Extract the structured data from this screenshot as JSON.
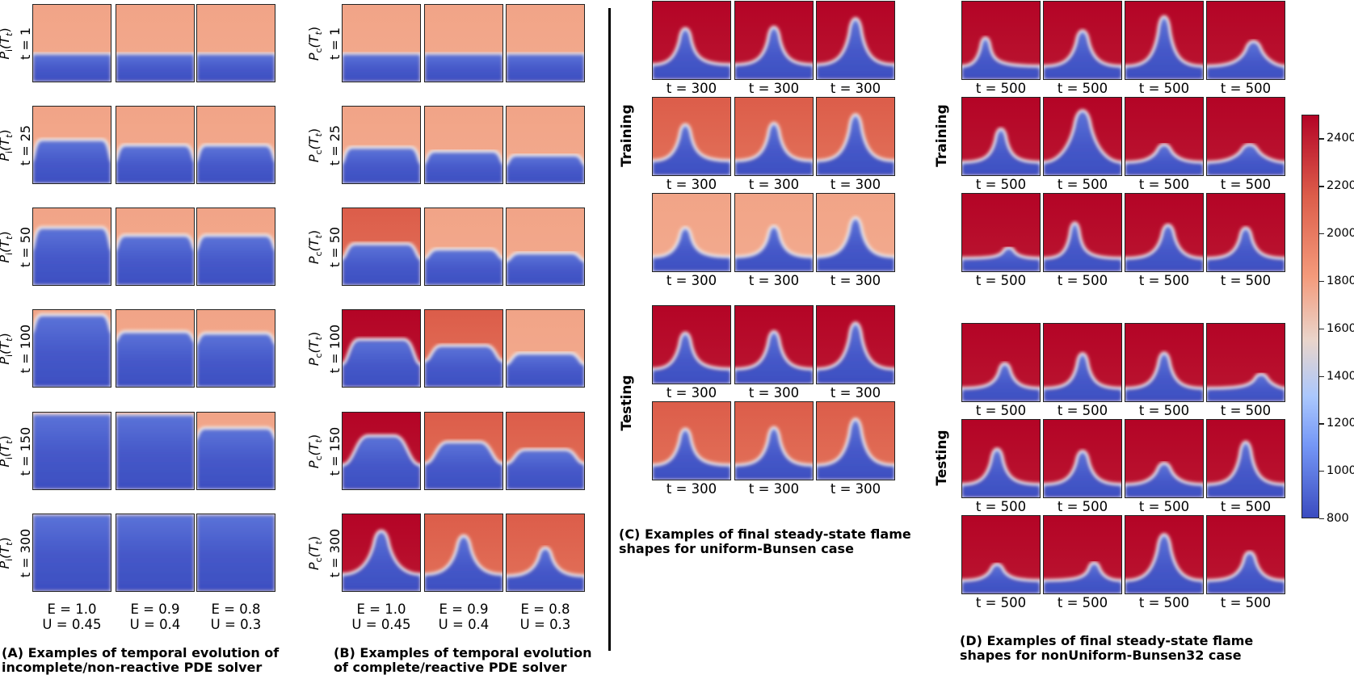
{
  "colors": {
    "hot_dark": "#b40426",
    "hot_mid": "#d65244",
    "hot_light": "#f2a385",
    "cold": "#4358cb",
    "frame": "#222222"
  },
  "sectionA": {
    "row_labels": [
      {
        "fn": "P",
        "sub": "i",
        "arg": "(T",
        "argsub": "t",
        "close": ")",
        "time": "t = 1"
      },
      {
        "fn": "P",
        "sub": "i",
        "arg": "(T",
        "argsub": "t",
        "close": ")",
        "time": "t = 25"
      },
      {
        "fn": "P",
        "sub": "i",
        "arg": "(T",
        "argsub": "t",
        "close": ")",
        "time": "t = 50"
      },
      {
        "fn": "P",
        "sub": "i",
        "arg": "(T",
        "argsub": "t",
        "close": ")",
        "time": "t = 100"
      },
      {
        "fn": "P",
        "sub": "i",
        "arg": "(T",
        "argsub": "t",
        "close": ")",
        "time": "t = 150"
      },
      {
        "fn": "P",
        "sub": "i",
        "arg": "(T",
        "argsub": "t",
        "close": ")",
        "time": "t = 300"
      }
    ],
    "columns": [
      {
        "e": "E = 1.0",
        "u": "U = 0.45"
      },
      {
        "e": "E = 0.9",
        "u": "U = 0.4"
      },
      {
        "e": "E = 0.8",
        "u": "U = 0.3"
      }
    ],
    "caption_line1": "(A) Examples of temporal evolution of",
    "caption_line2": "incomplete/non-reactive PDE solver"
  },
  "sectionB": {
    "row_labels": [
      {
        "fn": "P",
        "sub": "c",
        "arg": "(T",
        "argsub": "t",
        "close": ")",
        "time": "t = 1"
      },
      {
        "fn": "P",
        "sub": "c",
        "arg": "(T",
        "argsub": "t",
        "close": ")",
        "time": "t = 25"
      },
      {
        "fn": "P",
        "sub": "c",
        "arg": "(T",
        "argsub": "t",
        "close": ")",
        "time": "t = 50"
      },
      {
        "fn": "P",
        "sub": "c",
        "arg": "(T",
        "argsub": "t",
        "close": ")",
        "time": "t = 100"
      },
      {
        "fn": "P",
        "sub": "c",
        "arg": "(T",
        "argsub": "t",
        "close": ")",
        "time": "t = 150"
      },
      {
        "fn": "P",
        "sub": "c",
        "arg": "(T",
        "argsub": "t",
        "close": ")",
        "time": "t = 300"
      }
    ],
    "columns": [
      {
        "e": "E = 1.0",
        "u": "U = 0.45"
      },
      {
        "e": "E = 0.9",
        "u": "U = 0.4"
      },
      {
        "e": "E = 0.8",
        "u": "U = 0.3"
      }
    ],
    "caption_line1": "(B) Examples of temporal evolution",
    "caption_line2": "of complete/reactive PDE solver"
  },
  "sectionC": {
    "training_label": "Training",
    "testing_label": "Testing",
    "time_label": "t = 300",
    "caption_line1": "(C) Examples of final steady-state flame",
    "caption_line2": "shapes for uniform-Bunsen case"
  },
  "sectionD": {
    "training_label": "Training",
    "testing_label": "Testing",
    "time_label": "t = 500",
    "caption_line1": "(D) Examples of final steady-state flame",
    "caption_line2": "shapes for nonUniform-Bunsen32 case"
  },
  "colorbar": {
    "min": 800,
    "max": 2500,
    "ticks": [
      "2400",
      "2200",
      "2000",
      "1800",
      "1600",
      "1400",
      "1200",
      "1000",
      "800"
    ]
  }
}
